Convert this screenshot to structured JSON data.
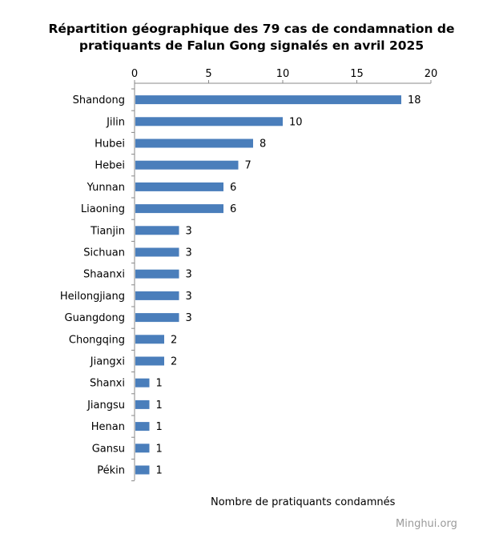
{
  "chart_data": {
    "type": "bar",
    "orientation": "horizontal",
    "title_line1": "Répartition géographique  des 79 cas de condamnation de",
    "title_line2": "pratiquants de Falun  Gong signalés  en avril 2025",
    "xlabel": "Nombre  de pratiquants  condamnés",
    "ylabel": "",
    "xlim": [
      0,
      20
    ],
    "xticks": [
      0,
      5,
      10,
      15,
      20
    ],
    "axis_position": "top",
    "grid": false,
    "legend": "none",
    "bar_color": "#4a7ebb",
    "categories": [
      "Shandong",
      "Jilin",
      "Hubei",
      "Hebei",
      "Yunnan",
      "Liaoning",
      "Tianjin",
      "Sichuan",
      "Shaanxi",
      "Heilongjiang",
      "Guangdong",
      "Chongqing",
      "Jiangxi",
      "Shanxi",
      "Jiangsu",
      "Henan",
      "Gansu",
      "Pékin"
    ],
    "values": [
      18,
      10,
      8,
      7,
      6,
      6,
      3,
      3,
      3,
      3,
      3,
      2,
      2,
      1,
      1,
      1,
      1,
      1
    ]
  },
  "watermark": "Minghui.org"
}
